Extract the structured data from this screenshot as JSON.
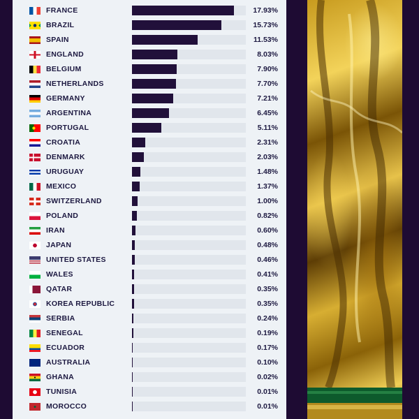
{
  "chart_data": {
    "type": "bar",
    "orientation": "horizontal",
    "value_suffix": "%",
    "xlim": [
      0,
      20
    ],
    "categories": [
      "FRANCE",
      "BRAZIL",
      "SPAIN",
      "ENGLAND",
      "BELGIUM",
      "NETHERLANDS",
      "GERMANY",
      "ARGENTINA",
      "PORTUGAL",
      "CROATIA",
      "DENMARK",
      "URUGUAY",
      "MEXICO",
      "SWITZERLAND",
      "POLAND",
      "IRAN",
      "JAPAN",
      "UNITED STATES",
      "WALES",
      "QATAR",
      "KOREA REPUBLIC",
      "SERBIA",
      "SENEGAL",
      "ECUADOR",
      "AUSTRALIA",
      "GHANA",
      "TUNISIA",
      "MOROCCO"
    ],
    "values": [
      17.93,
      15.73,
      11.53,
      8.03,
      7.9,
      7.7,
      7.21,
      6.45,
      5.11,
      2.31,
      2.03,
      1.48,
      1.37,
      1.0,
      0.82,
      0.6,
      0.48,
      0.46,
      0.41,
      0.35,
      0.35,
      0.24,
      0.19,
      0.17,
      0.1,
      0.02,
      0.01,
      0.01
    ],
    "labels": [
      "17.93%",
      "15.73%",
      "11.53%",
      "8.03%",
      "7.90%",
      "7.70%",
      "7.21%",
      "6.45%",
      "5.11%",
      "2.31%",
      "2.03%",
      "1.48%",
      "1.37%",
      "1.00%",
      "0.82%",
      "0.60%",
      "0.48%",
      "0.46%",
      "0.41%",
      "0.35%",
      "0.35%",
      "0.24%",
      "0.19%",
      "0.17%",
      "0.10%",
      "0.02%",
      "0.01%",
      "0.01%"
    ],
    "colors": {
      "bar": "#21103a",
      "track": "#e1e6ec",
      "panel": "#eef2f6",
      "background": "#1e0b33",
      "text": "#1c1840"
    },
    "flag_icons": [
      "france-flag-icon",
      "brazil-flag-icon",
      "spain-flag-icon",
      "england-flag-icon",
      "belgium-flag-icon",
      "netherlands-flag-icon",
      "germany-flag-icon",
      "argentina-flag-icon",
      "portugal-flag-icon",
      "croatia-flag-icon",
      "denmark-flag-icon",
      "uruguay-flag-icon",
      "mexico-flag-icon",
      "switzerland-flag-icon",
      "poland-flag-icon",
      "iran-flag-icon",
      "japan-flag-icon",
      "united-states-flag-icon",
      "wales-flag-icon",
      "qatar-flag-icon",
      "korea-republic-flag-icon",
      "serbia-flag-icon",
      "senegal-flag-icon",
      "ecuador-flag-icon",
      "australia-flag-icon",
      "ghana-flag-icon",
      "tunisia-flag-icon",
      "morocco-flag-icon"
    ]
  },
  "flag_styles": [
    "linear-gradient(90deg,#0055a4 33%,#fff 33% 66%,#ef4135 66%)",
    "radial-gradient(circle at 50% 50%,#002776 22%,transparent 24%),linear-gradient(135deg,transparent 30%,#fedf00 30% 70%,transparent 70%),linear-gradient(45deg,#009c3b 30%,#fedf00 30% 70%,#009c3b 70%)",
    "linear-gradient(180deg,#aa151b 25%,#f1bf00 25% 75%,#aa151b 75%)",
    "linear-gradient(90deg,transparent 42%,#ce1124 42% 58%,transparent 58%),linear-gradient(180deg,#fff 40%,#ce1124 40% 60%,#fff 60%)",
    "linear-gradient(90deg,#000 33%,#fae042 33% 66%,#ed2939 66%)",
    "linear-gradient(180deg,#ae1c28 33%,#fff 33% 66%,#21468b 66%)",
    "linear-gradient(180deg,#000 33%,#dd0000 33% 66%,#ffce00 66%)",
    "linear-gradient(180deg,#74acdf 33%,#fff 33% 66%,#74acdf 66%)",
    "radial-gradient(circle at 40% 50%,#ffe000 18%,transparent 20%),linear-gradient(90deg,#006600 40%,#ff0000 40%)",
    "linear-gradient(180deg,#ff0000 33%,#fff 33% 66%,#171796 66%)",
    "linear-gradient(90deg,transparent 30%,#fff 30% 42%,transparent 42%),linear-gradient(180deg,#c8102e 42%,#fff 42% 58%,#c8102e 58%)",
    "linear-gradient(180deg,#fff 0 20%,#0038a8 20% 40%,#fff 40% 60%,#0038a8 60% 80%,#fff 80%)",
    "linear-gradient(90deg,#006847 33%,#fff 33% 66%,#ce1126 66%)",
    "linear-gradient(90deg,transparent 40%,#fff 40% 60%,transparent 60%),linear-gradient(180deg,#d52b1e 36%,#fff 36% 64%,#d52b1e 64%)",
    "linear-gradient(180deg,#fff 50%,#dc143c 50%)",
    "linear-gradient(180deg,#239f40 33%,#fff 33% 66%,#da0000 66%)",
    "radial-gradient(circle at 50% 50%,#bc002d 28%,#fff 30%)",
    "linear-gradient(180deg,#3c3b6e 0 45%,transparent 45%),repeating-linear-gradient(180deg,#b22234 0 1.5px,#fff 1.5px 3px)",
    "linear-gradient(180deg,#fff 50%,#00b140 50%)",
    "linear-gradient(90deg,#fff 28%,#8a1538 28%)",
    "radial-gradient(circle at 50% 50%,#cd2e3a 20%,#0047a0 22% 28%,#fff 30%)",
    "linear-gradient(180deg,#c6363c 33%,#0c4076 33% 66%,#fff 66%)",
    "linear-gradient(90deg,#00853f 33%,#fdef42 33% 66%,#e31b23 66%)",
    "linear-gradient(180deg,#ffdd00 50%,#034ea2 50% 75%,#ed1c24 75%)",
    "linear-gradient(180deg,#00247d 0 100%)",
    "radial-gradient(circle at 50% 50%,#000 10%,transparent 12%),linear-gradient(180deg,#ce1126 33%,#fcd116 33% 66%,#006b3f 66%)",
    "radial-gradient(circle at 50% 50%,#fff 28%,transparent 30%),linear-gradient(180deg,#e70013 0 100%)",
    "radial-gradient(circle at 50% 50%,#006233 14%,transparent 16%),linear-gradient(180deg,#c1272d 0 100%)"
  ]
}
